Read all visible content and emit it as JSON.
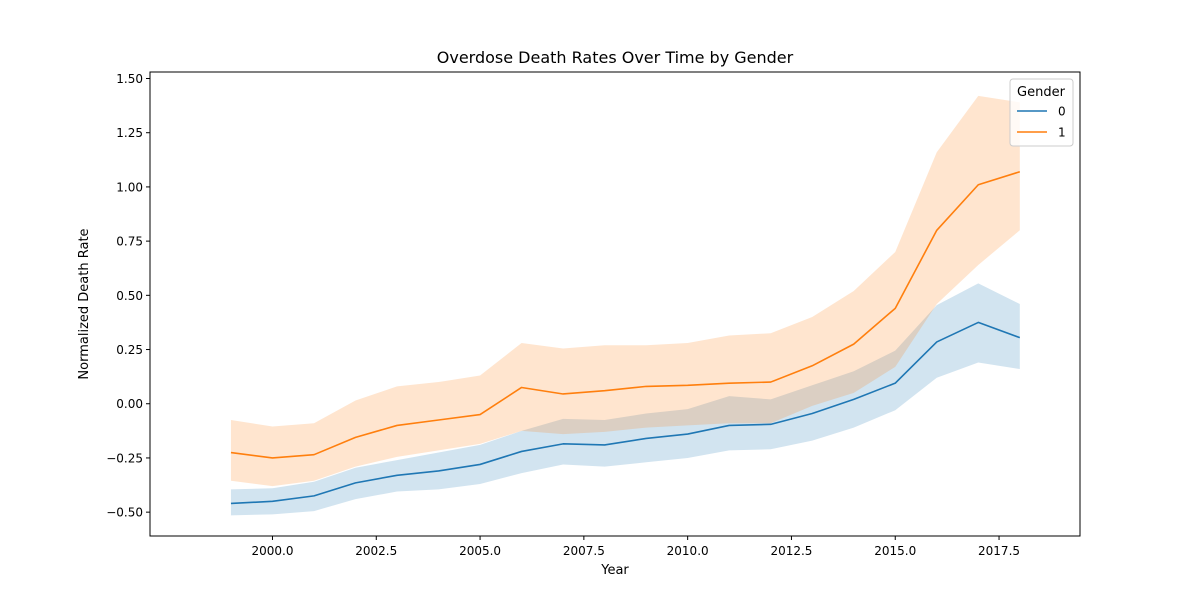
{
  "chart_data": {
    "type": "line",
    "title": "Overdose Death Rates Over Time by Gender",
    "xlabel": "Year",
    "ylabel": "Normalized Death Rate",
    "xlim": [
      1997.05,
      2019.45
    ],
    "ylim": [
      -0.61,
      1.53
    ],
    "x_ticks": [
      2000.0,
      2002.5,
      2005.0,
      2007.5,
      2010.0,
      2012.5,
      2015.0,
      2017.5
    ],
    "x_tick_labels": [
      "2000.0",
      "2002.5",
      "2005.0",
      "2007.5",
      "2010.0",
      "2012.5",
      "2015.0",
      "2017.5"
    ],
    "y_ticks": [
      -0.5,
      -0.25,
      0.0,
      0.25,
      0.5,
      0.75,
      1.0,
      1.25,
      1.5
    ],
    "y_tick_labels": [
      "−0.50",
      "−0.25",
      "0.00",
      "0.25",
      "0.50",
      "0.75",
      "1.00",
      "1.25",
      "1.50"
    ],
    "grid": false,
    "legend": {
      "title": "Gender",
      "placement": "top-right"
    },
    "x": [
      1999,
      2000,
      2001,
      2002,
      2003,
      2004,
      2005,
      2006,
      2007,
      2008,
      2009,
      2010,
      2011,
      2012,
      2013,
      2014,
      2015,
      2016,
      2017,
      2018
    ],
    "series": [
      {
        "name": "0",
        "color": "#1f77b4",
        "values": [
          -0.46,
          -0.45,
          -0.425,
          -0.365,
          -0.33,
          -0.31,
          -0.28,
          -0.22,
          -0.185,
          -0.19,
          -0.16,
          -0.14,
          -0.1,
          -0.095,
          -0.045,
          0.02,
          0.095,
          0.285,
          0.375,
          0.305
        ],
        "ci_low": [
          -0.515,
          -0.51,
          -0.495,
          -0.44,
          -0.405,
          -0.395,
          -0.37,
          -0.32,
          -0.28,
          -0.29,
          -0.27,
          -0.25,
          -0.215,
          -0.21,
          -0.17,
          -0.11,
          -0.03,
          0.12,
          0.19,
          0.16
        ],
        "ci_high": [
          -0.395,
          -0.39,
          -0.36,
          -0.295,
          -0.26,
          -0.225,
          -0.19,
          -0.125,
          -0.07,
          -0.075,
          -0.045,
          -0.025,
          0.035,
          0.02,
          0.085,
          0.15,
          0.245,
          0.455,
          0.555,
          0.46
        ]
      },
      {
        "name": "1",
        "color": "#ff7f0e",
        "values": [
          -0.225,
          -0.25,
          -0.235,
          -0.155,
          -0.1,
          -0.075,
          -0.05,
          0.075,
          0.045,
          0.06,
          0.08,
          0.085,
          0.095,
          0.1,
          0.175,
          0.275,
          0.44,
          0.8,
          1.01,
          1.07
        ],
        "ci_low": [
          -0.355,
          -0.38,
          -0.355,
          -0.29,
          -0.245,
          -0.215,
          -0.185,
          -0.125,
          -0.14,
          -0.13,
          -0.11,
          -0.1,
          -0.09,
          -0.09,
          -0.01,
          0.05,
          0.17,
          0.46,
          0.64,
          0.8
        ],
        "ci_high": [
          -0.075,
          -0.105,
          -0.09,
          0.015,
          0.08,
          0.1,
          0.13,
          0.28,
          0.255,
          0.27,
          0.27,
          0.28,
          0.315,
          0.325,
          0.4,
          0.52,
          0.7,
          1.16,
          1.42,
          1.39
        ]
      }
    ]
  }
}
